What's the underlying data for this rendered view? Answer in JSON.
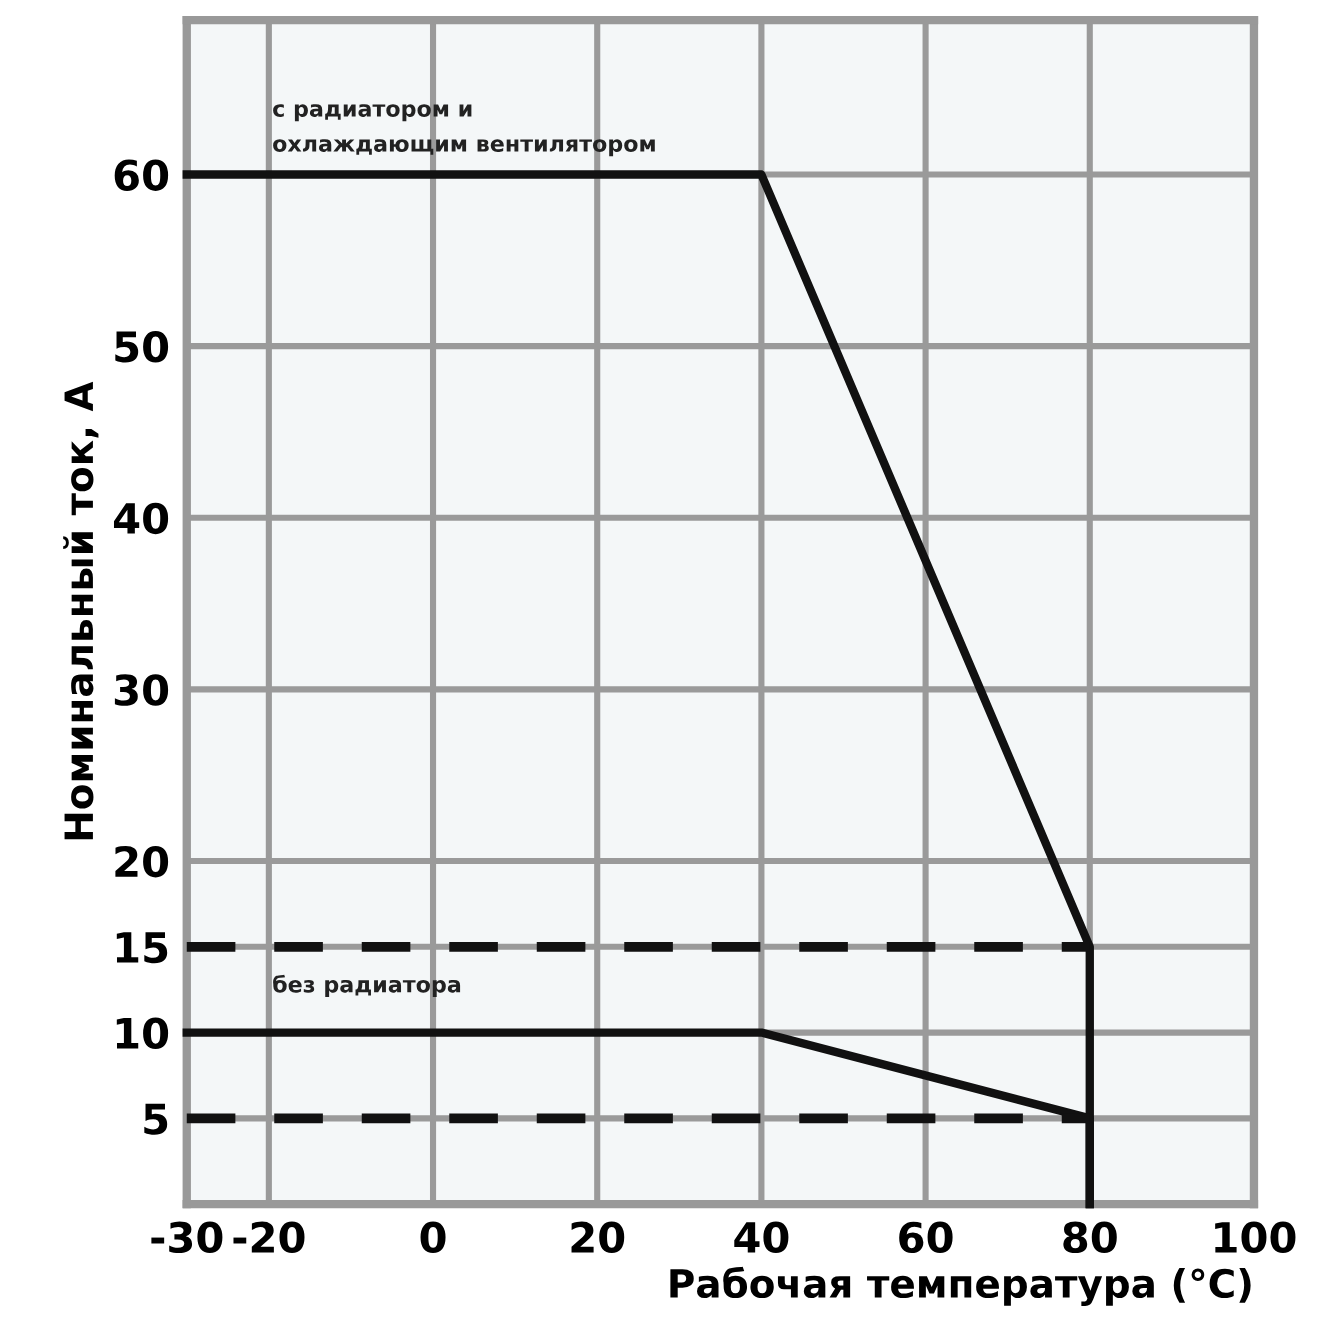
{
  "chart_data": {
    "type": "line",
    "xlabel": "Рабочая температура (°C)",
    "ylabel": "Номинальный ток, А",
    "xlim": [
      -30,
      100
    ],
    "xticks": [
      -30,
      -20,
      0,
      20,
      40,
      60,
      80,
      100
    ],
    "ylim": [
      0,
      69
    ],
    "yticks": [
      5,
      10,
      15,
      20,
      30,
      40,
      50,
      60
    ],
    "grid": true,
    "marker": "none",
    "series": [
      {
        "color": "#111111",
        "x": [
          -30,
          40,
          80,
          80
        ],
        "values": [
          60,
          60,
          15,
          0
        ],
        "line_style": "solid"
      },
      {
        "color": "#111111",
        "x": [
          -30,
          40,
          80,
          80
        ],
        "values": [
          10,
          10,
          5,
          0
        ],
        "line_style": "solid"
      },
      {
        "color": "#111111",
        "x": [
          -30,
          80
        ],
        "values": [
          15,
          15
        ],
        "line_style": "dashed"
      },
      {
        "color": "#111111",
        "x": [
          -30,
          80
        ],
        "values": [
          5,
          5
        ],
        "line_style": "dashed"
      }
    ],
    "annotations": [
      "с радиатором и\nохлаждающим вентилятором",
      "без радиатора"
    ]
  }
}
